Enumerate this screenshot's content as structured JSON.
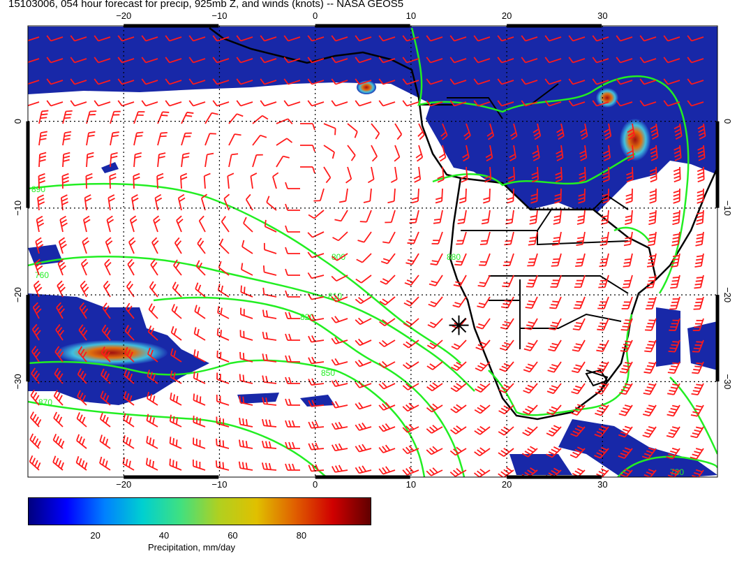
{
  "title": "15103006, 054 hour forecast for precip, 925mb Z, and winds (knots) -- NASA GEOS5",
  "map": {
    "lon_range": [
      -30,
      42
    ],
    "lat_range": [
      -41,
      11
    ],
    "lon_ticks": [
      -20,
      -10,
      0,
      10,
      20,
      30
    ],
    "lat_ticks": [
      0,
      -10,
      -20,
      -30
    ],
    "lon_tick_labels": [
      "−20",
      "−10",
      "0",
      "10",
      "20",
      "30"
    ],
    "lat_tick_labels": [
      "0",
      "−10",
      "−20",
      "−30"
    ],
    "contour_labels": [
      "760",
      "780",
      "800",
      "810",
      "820",
      "850",
      "870",
      "880",
      "890"
    ],
    "marker": {
      "type": "asterisk",
      "lon": 15,
      "lat": -23.5,
      "color": "#000000"
    },
    "colors": {
      "contour": "#22ee22",
      "barb": "#ff1a1a",
      "coast": "#000000",
      "precip_low": "#1020a0"
    }
  },
  "colorbar": {
    "ticks": [
      "20",
      "40",
      "60",
      "80"
    ],
    "tick_values": [
      20,
      40,
      60,
      80
    ],
    "range": [
      0,
      100
    ],
    "label": "Precipitation, mm/day",
    "gradient": [
      "#00007f",
      "#0000ff",
      "#0080ff",
      "#00d0d0",
      "#40e080",
      "#b0d020",
      "#e0c000",
      "#e06000",
      "#d00000",
      "#600000"
    ]
  }
}
